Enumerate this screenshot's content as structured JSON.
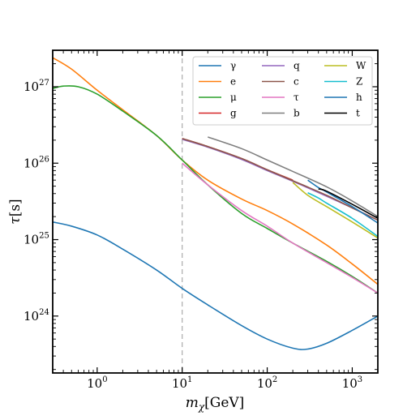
{
  "chart_data": {
    "type": "line",
    "xlabel": {
      "base": "m",
      "sub": "χ",
      "unit": "[GeV]"
    },
    "ylabel": {
      "base": "τ",
      "unit": "[s]"
    },
    "xscale": "log",
    "yscale": "log",
    "xlim": [
      0.3,
      2000
    ],
    "ylim": [
      1.8e+23,
      3e+27
    ],
    "x_ticks": [
      {
        "value": 1,
        "base": "10",
        "exp": "0"
      },
      {
        "value": 10,
        "base": "10",
        "exp": "1"
      },
      {
        "value": 100,
        "base": "10",
        "exp": "2"
      },
      {
        "value": 1000,
        "base": "10",
        "exp": "3"
      }
    ],
    "y_ticks": [
      {
        "value": 1e+24,
        "base": "10",
        "exp": "24"
      },
      {
        "value": 1e+25,
        "base": "10",
        "exp": "25"
      },
      {
        "value": 1e+26,
        "base": "10",
        "exp": "26"
      },
      {
        "value": 1e+27,
        "base": "10",
        "exp": "27"
      }
    ],
    "vline": {
      "x": 10,
      "color": "#b0b0b0",
      "style": "dashed"
    },
    "legend": {
      "placement": "top-right",
      "columns": 3
    },
    "series": [
      {
        "name": "γ",
        "color": "#1f77b4",
        "x": [
          0.3,
          0.5,
          1,
          2,
          5,
          10,
          20,
          50,
          100,
          200,
          300,
          500,
          1000,
          2000
        ],
        "y": [
          1.7e+25,
          1.5e+25,
          1.15e+25,
          7.5e+24,
          4e+24,
          2.3e+24,
          1.4e+24,
          7.5e+23,
          5e+23,
          3.8e+23,
          3.7e+23,
          4.4e+23,
          6.5e+23,
          1e+24
        ]
      },
      {
        "name": "e",
        "color": "#ff7f0e",
        "x": [
          0.3,
          0.5,
          1,
          2,
          5,
          10,
          20,
          50,
          100,
          200,
          500,
          1000,
          2000
        ],
        "y": [
          2.4e+27,
          1.7e+27,
          9e+26,
          5e+26,
          2.3e+26,
          1.1e+26,
          6e+25,
          3.4e+25,
          2.4e+25,
          1.6e+25,
          8.5e+24,
          4.8e+24,
          2.6e+24
        ]
      },
      {
        "name": "μ",
        "color": "#2ca02c",
        "x": [
          0.3,
          0.4,
          0.6,
          1,
          2,
          5,
          10,
          20,
          50,
          100,
          200,
          500,
          1000,
          2000
        ],
        "y": [
          9.5e+26,
          1.02e+27,
          1e+27,
          8e+26,
          4.8e+26,
          2.3e+26,
          1.1e+26,
          5.2e+25,
          2.2e+25,
          1.4e+25,
          9e+24,
          5.2e+24,
          3.3e+24,
          2e+24
        ]
      },
      {
        "name": "g",
        "color": "#d62728",
        "x": [
          10,
          20,
          50,
          100,
          200
        ],
        "y": [
          2.1e+26,
          1.65e+26,
          1.15e+26,
          8.2e+25,
          6e+25
        ]
      },
      {
        "name": "q",
        "color": "#9467bd",
        "x": [
          10,
          20,
          50,
          100,
          200,
          500,
          1000,
          2000
        ],
        "y": [
          2.05e+26,
          1.62e+26,
          1.12e+26,
          8e+25,
          5.8e+25,
          3.7e+25,
          2.6e+25,
          1.8e+25
        ]
      },
      {
        "name": "c",
        "color": "#8c564b",
        "x": [
          10,
          20,
          50,
          100,
          200,
          500,
          1000,
          2000
        ],
        "y": [
          2.1e+26,
          1.65e+26,
          1.15e+26,
          8.2e+25,
          5.9e+25,
          3.8e+25,
          2.6e+25,
          1.8e+25
        ]
      },
      {
        "name": "τ",
        "color": "#e377c2",
        "x": [
          10,
          20,
          50,
          100,
          200,
          500,
          1000,
          2000
        ],
        "y": [
          1e+26,
          5.2e+25,
          2.4e+25,
          1.5e+25,
          9e+24,
          5e+24,
          3.2e+24,
          2e+24
        ]
      },
      {
        "name": "b",
        "color": "#7f7f7f",
        "x": [
          20,
          50,
          100,
          200,
          500,
          1000,
          2000
        ],
        "y": [
          2.2e+26,
          1.55e+26,
          1.1e+26,
          7.8e+25,
          4.9e+25,
          3.2e+25,
          2e+25
        ]
      },
      {
        "name": "W",
        "color": "#bcbd22",
        "x": [
          200,
          300,
          500,
          1000,
          2000
        ],
        "y": [
          5.6e+25,
          3.8e+25,
          2.7e+25,
          1.7e+25,
          1.05e+25
        ]
      },
      {
        "name": "Z",
        "color": "#17becf",
        "x": [
          300,
          400,
          500,
          1000,
          2000
        ],
        "y": [
          4.1e+25,
          3.5e+25,
          3e+25,
          1.9e+25,
          1.1e+25
        ]
      },
      {
        "name": "h",
        "color": "#1f77b4",
        "x": [
          300,
          400,
          500,
          1000,
          2000
        ],
        "y": [
          6e+25,
          4.8e+25,
          4.2e+25,
          2.7e+25,
          1.65e+25
        ]
      },
      {
        "name": "t",
        "color": "#000000",
        "x": [
          400,
          500,
          1000,
          2000
        ],
        "y": [
          4.6e+25,
          4.3e+25,
          2.9e+25,
          1.9e+25
        ]
      }
    ]
  }
}
